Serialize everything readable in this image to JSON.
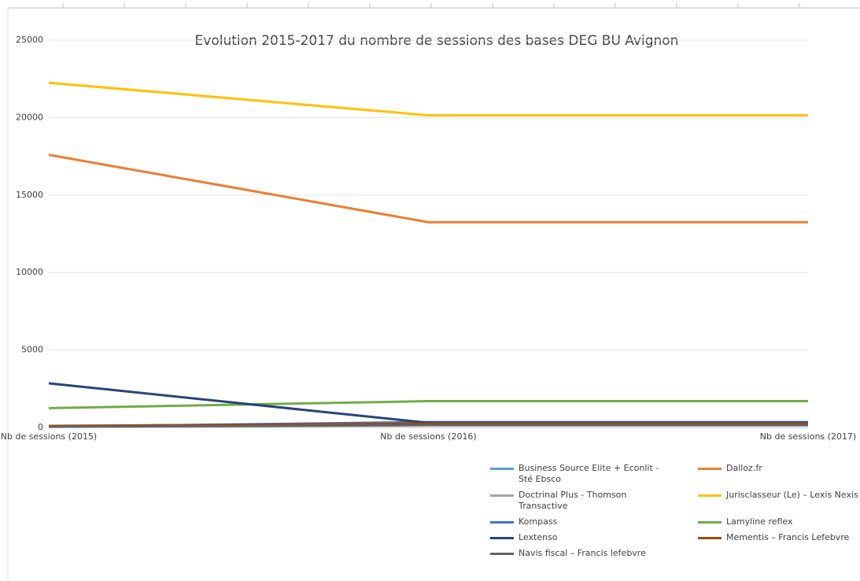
{
  "chart_data": {
    "type": "line",
    "title": "Evolution 2015-2017 du nombre de sessions des bases DEG BU Avignon",
    "categories": [
      "Nb de sessions (2015)",
      "Nb de sessions (2016)",
      "Nb de sessions (2017)"
    ],
    "ylim": [
      0,
      25000
    ],
    "yticks": [
      0,
      5000,
      10000,
      15000,
      20000,
      25000
    ],
    "grid": true,
    "series": [
      {
        "name": "Business Source Elite + Econlit - Sté Ebsco",
        "color": "#5b9bd5",
        "values": [
          50,
          250,
          250
        ]
      },
      {
        "name": "Dalloz.fr",
        "color": "#ed7d31",
        "values": [
          17600,
          13250,
          13250
        ]
      },
      {
        "name": "Doctrinal Plus -  Thomson Transactive",
        "color": "#a5a5a5",
        "values": [
          50,
          200,
          200
        ]
      },
      {
        "name": "Jurisclasseur (Le) – Lexis Nexis",
        "color": "#ffc000",
        "values": [
          22250,
          20150,
          20150
        ]
      },
      {
        "name": "Kompass",
        "color": "#4472c4",
        "values": [
          50,
          350,
          350
        ]
      },
      {
        "name": "Lamyline reflex",
        "color": "#70ad47",
        "values": [
          1250,
          1700,
          1700
        ]
      },
      {
        "name": "Lextenso",
        "color": "#264478",
        "values": [
          2850,
          300,
          300
        ]
      },
      {
        "name": "Mementis – Francis Lefebvre",
        "color": "#9e480e",
        "values": [
          100,
          250,
          250
        ]
      },
      {
        "name": "Navis fiscal – Francis lefebvre",
        "color": "#636363",
        "values": [
          50,
          150,
          150
        ]
      }
    ]
  }
}
